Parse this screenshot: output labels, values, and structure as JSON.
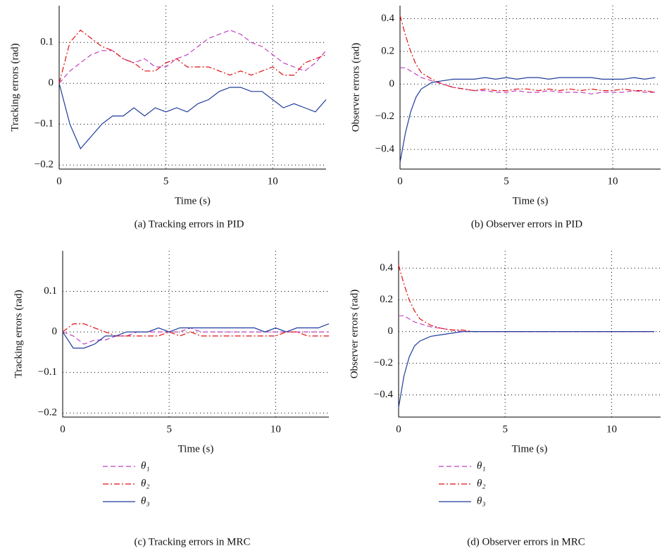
{
  "chart_data": [
    {
      "type": "line",
      "caption": "(a)  Tracking errors in PID",
      "xlabel": "Time (s)",
      "ylabel": "Tracking errors (rad)",
      "xlim": [
        0,
        12.5
      ],
      "ylim": [
        -0.21,
        0.19
      ],
      "xticks": [
        0,
        5,
        10
      ],
      "yticks": [
        {
          "value": -0.2,
          "label": "−0.2"
        },
        {
          "value": -0.1,
          "label": "−0.1"
        },
        0,
        0.1
      ],
      "grid": true,
      "x": [
        0,
        0.5,
        1,
        1.5,
        2,
        2.5,
        3,
        3.5,
        4,
        4.5,
        5,
        5.5,
        6,
        6.5,
        7,
        7.5,
        8,
        8.5,
        9,
        9.5,
        10,
        10.5,
        11,
        11.5,
        12,
        12.5
      ],
      "series": [
        {
          "color": "#c040c0",
          "style": "dashed",
          "values": [
            0,
            0.03,
            0.05,
            0.07,
            0.08,
            0.08,
            0.06,
            0.05,
            0.06,
            0.04,
            0.04,
            0.06,
            0.07,
            0.09,
            0.11,
            0.12,
            0.13,
            0.12,
            0.1,
            0.09,
            0.07,
            0.05,
            0.04,
            0.03,
            0.05,
            0.08
          ]
        },
        {
          "color": "#e01010",
          "style": "dashdot",
          "values": [
            0,
            0.1,
            0.13,
            0.11,
            0.09,
            0.08,
            0.06,
            0.05,
            0.03,
            0.03,
            0.05,
            0.06,
            0.04,
            0.04,
            0.04,
            0.03,
            0.02,
            0.03,
            0.02,
            0.03,
            0.04,
            0.02,
            0.02,
            0.05,
            0.06,
            0.07
          ]
        },
        {
          "color": "#1f3c9c",
          "style": "solid",
          "values": [
            0,
            -0.1,
            -0.16,
            -0.13,
            -0.1,
            -0.08,
            -0.08,
            -0.06,
            -0.08,
            -0.06,
            -0.07,
            -0.06,
            -0.07,
            -0.05,
            -0.04,
            -0.02,
            -0.01,
            -0.01,
            -0.02,
            -0.02,
            -0.04,
            -0.06,
            -0.05,
            -0.06,
            -0.07,
            -0.04
          ]
        }
      ]
    },
    {
      "type": "line",
      "caption": "(b)  Observer errors in PID",
      "xlabel": "Time (s)",
      "ylabel": "Observer errors (rad)",
      "xlim": [
        0,
        12.25
      ],
      "ylim": [
        -0.52,
        0.48
      ],
      "xticks": [
        0,
        5,
        10
      ],
      "yticks": [
        {
          "value": -0.4,
          "label": "−0.4"
        },
        {
          "value": -0.2,
          "label": "−0.2"
        },
        0,
        0.2,
        0.4
      ],
      "grid": true,
      "x": [
        0,
        0.25,
        0.5,
        0.75,
        1,
        1.5,
        2,
        2.5,
        3,
        3.5,
        4,
        4.5,
        5,
        5.5,
        6,
        6.5,
        7,
        7.5,
        8,
        8.5,
        9,
        9.5,
        10,
        10.5,
        11,
        11.5,
        12
      ],
      "series": [
        {
          "color": "#c040c0",
          "style": "dashed",
          "values": [
            0.1,
            0.1,
            0.08,
            0.06,
            0.04,
            0.02,
            0,
            -0.02,
            -0.03,
            -0.04,
            -0.04,
            -0.05,
            -0.05,
            -0.04,
            -0.05,
            -0.05,
            -0.04,
            -0.05,
            -0.05,
            -0.05,
            -0.06,
            -0.05,
            -0.05,
            -0.05,
            -0.04,
            -0.05,
            -0.05
          ]
        },
        {
          "color": "#e01010",
          "style": "dashdot",
          "values": [
            0.42,
            0.3,
            0.2,
            0.12,
            0.07,
            0.03,
            0,
            -0.02,
            -0.03,
            -0.04,
            -0.03,
            -0.04,
            -0.04,
            -0.03,
            -0.03,
            -0.04,
            -0.03,
            -0.04,
            -0.03,
            -0.04,
            -0.03,
            -0.04,
            -0.04,
            -0.03,
            -0.04,
            -0.04,
            -0.05
          ]
        },
        {
          "color": "#1f3c9c",
          "style": "solid",
          "values": [
            -0.48,
            -0.3,
            -0.17,
            -0.08,
            -0.03,
            0.01,
            0.02,
            0.03,
            0.03,
            0.03,
            0.04,
            0.03,
            0.04,
            0.03,
            0.04,
            0.04,
            0.03,
            0.04,
            0.04,
            0.04,
            0.04,
            0.03,
            0.03,
            0.03,
            0.04,
            0.03,
            0.04
          ]
        }
      ]
    },
    {
      "type": "line",
      "caption": "(c)  Tracking errors in MRC",
      "xlabel": "Time (s)",
      "ylabel": "Tracking errors (rad)",
      "xlim": [
        0,
        12.5
      ],
      "ylim": [
        -0.21,
        0.2
      ],
      "xticks": [
        0,
        5,
        10
      ],
      "yticks": [
        {
          "value": -0.2,
          "label": "−0.2"
        },
        {
          "value": -0.1,
          "label": "−0.1"
        },
        0,
        0.1
      ],
      "grid": true,
      "x": [
        0,
        0.5,
        1,
        1.5,
        2,
        2.5,
        3,
        3.5,
        4,
        4.5,
        5,
        5.5,
        6,
        6.5,
        7,
        7.5,
        8,
        8.5,
        9,
        9.5,
        10,
        10.5,
        11,
        11.5,
        12,
        12.5
      ],
      "series": [
        {
          "name": "θ₁",
          "color": "#c040c0",
          "style": "dashed",
          "values": [
            0,
            -0.01,
            -0.03,
            -0.02,
            -0.02,
            -0.01,
            -0.01,
            0,
            0,
            0,
            0,
            0,
            0.01,
            0,
            0,
            0,
            0,
            0,
            0,
            0,
            0,
            0,
            0,
            0,
            0,
            0
          ]
        },
        {
          "name": "θ₂",
          "color": "#e01010",
          "style": "dashdot",
          "values": [
            0,
            0.02,
            0.02,
            0.01,
            0,
            -0.01,
            -0.01,
            -0.01,
            -0.01,
            -0.01,
            0,
            -0.01,
            0,
            -0.01,
            -0.01,
            -0.01,
            -0.01,
            -0.01,
            -0.01,
            -0.01,
            -0.01,
            0,
            0,
            -0.01,
            -0.01,
            -0.01
          ]
        },
        {
          "name": "θ₃",
          "color": "#1f3c9c",
          "style": "solid",
          "values": [
            0,
            -0.04,
            -0.04,
            -0.03,
            -0.01,
            -0.01,
            0,
            0,
            0,
            0.01,
            0,
            0.01,
            0.01,
            0.01,
            0.01,
            0.01,
            0.01,
            0.01,
            0.01,
            0,
            0.01,
            0,
            0.01,
            0.01,
            0.01,
            0.02
          ]
        }
      ]
    },
    {
      "type": "line",
      "caption": "(d)  Observer errors in MRC",
      "xlabel": "Time (s)",
      "ylabel": "Observer errors (rad)",
      "xlim": [
        0,
        12.3
      ],
      "ylim": [
        -0.54,
        0.51
      ],
      "xticks": [
        0,
        5,
        10
      ],
      "yticks": [
        {
          "value": -0.4,
          "label": "−0.4"
        },
        {
          "value": -0.2,
          "label": "−0.2"
        },
        0,
        0.2,
        0.4
      ],
      "grid": true,
      "x": [
        0,
        0.25,
        0.5,
        0.75,
        1,
        1.5,
        2,
        2.5,
        3,
        3.5,
        4,
        4.5,
        5,
        5.5,
        6,
        6.5,
        7,
        7.5,
        8,
        8.5,
        9,
        9.5,
        10,
        10.5,
        11,
        11.5,
        12
      ],
      "series": [
        {
          "name": "θ₁",
          "color": "#c040c0",
          "style": "dashed",
          "values": [
            0.1,
            0.1,
            0.08,
            0.06,
            0.05,
            0.03,
            0.02,
            0.01,
            0,
            0,
            0,
            0,
            0,
            0,
            0,
            0,
            0,
            0,
            0,
            0,
            0,
            0,
            0,
            0,
            0,
            0,
            0
          ]
        },
        {
          "name": "θ₂",
          "color": "#e01010",
          "style": "dashdot",
          "values": [
            0.42,
            0.3,
            0.2,
            0.13,
            0.08,
            0.04,
            0.02,
            0.01,
            0.01,
            0,
            0,
            0,
            0,
            0,
            0,
            0,
            0,
            0,
            0,
            0,
            0,
            0,
            0,
            0,
            0,
            0,
            0
          ]
        },
        {
          "name": "θ₃",
          "color": "#1f3c9c",
          "style": "solid",
          "values": [
            -0.48,
            -0.28,
            -0.16,
            -0.09,
            -0.06,
            -0.03,
            -0.02,
            -0.01,
            0,
            0,
            0,
            0,
            0,
            0,
            0,
            0,
            0,
            0,
            0,
            0,
            0,
            0,
            0,
            0,
            0,
            0,
            0
          ]
        }
      ]
    }
  ]
}
